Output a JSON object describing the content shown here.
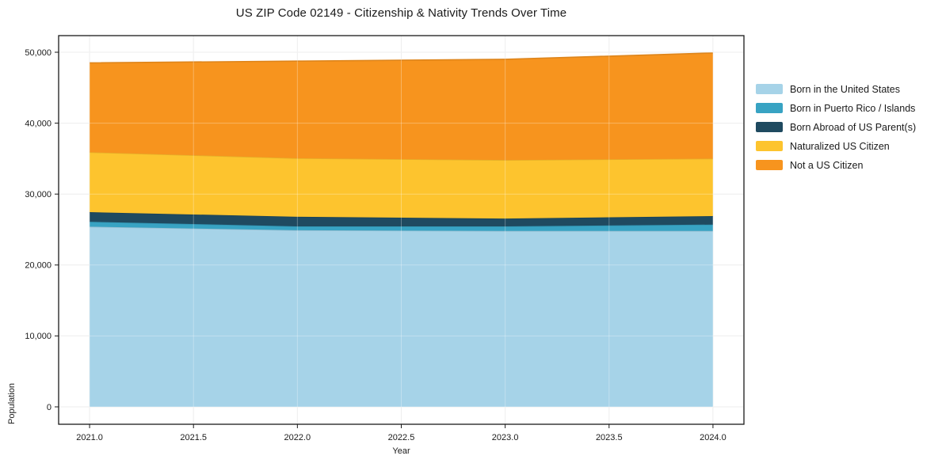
{
  "title": "US ZIP Code 02149 - Citizenship & Nativity Trends Over Time",
  "chart_data": {
    "type": "area",
    "stacked": true,
    "title": "US ZIP Code 02149 - Citizenship & Nativity Trends Over Time",
    "xlabel": "Year",
    "ylabel": "Population",
    "x": [
      2021,
      2022,
      2023,
      2024
    ],
    "series": [
      {
        "name": "Born in the United States",
        "color": "#a6d3e8",
        "values": [
          25400,
          24900,
          24800,
          24800
        ]
      },
      {
        "name": "Born in Puerto Rico / Islands",
        "color": "#38a3c3",
        "values": [
          700,
          550,
          650,
          900
        ]
      },
      {
        "name": "Born Abroad of US Parent(s)",
        "color": "#1f4a60",
        "values": [
          1350,
          1350,
          1100,
          1200
        ]
      },
      {
        "name": "Naturalized US Citizen",
        "color": "#fdc42e",
        "values": [
          8450,
          8250,
          8250,
          8100
        ]
      },
      {
        "name": "Not a US Citizen",
        "color": "#f7941e",
        "values": [
          12600,
          13700,
          14200,
          14900
        ]
      }
    ],
    "stacked_totals": [
      48500,
      48750,
      49000,
      49900
    ],
    "xticks": [
      2021.0,
      2021.5,
      2022.0,
      2022.5,
      2023.0,
      2023.5,
      2024.0
    ],
    "xticklabels": [
      "2021.0",
      "2021.5",
      "2022.0",
      "2022.5",
      "2023.0",
      "2023.5",
      "2024.0"
    ],
    "yticks": [
      0,
      10000,
      20000,
      30000,
      40000,
      50000
    ],
    "yticklabels": [
      "0",
      "10,000",
      "20,000",
      "30,000",
      "40,000",
      "50,000"
    ],
    "xlim": [
      2020.851,
      2024.149
    ],
    "ylim": [
      -2456,
      52344
    ],
    "grid": true,
    "legend_position": "right-outside",
    "colors": {
      "spine": "#1a1a1a",
      "gridline": "#e7e7e7",
      "tick_label": "#1a1a1a",
      "plot_background": "#ffffff"
    }
  }
}
